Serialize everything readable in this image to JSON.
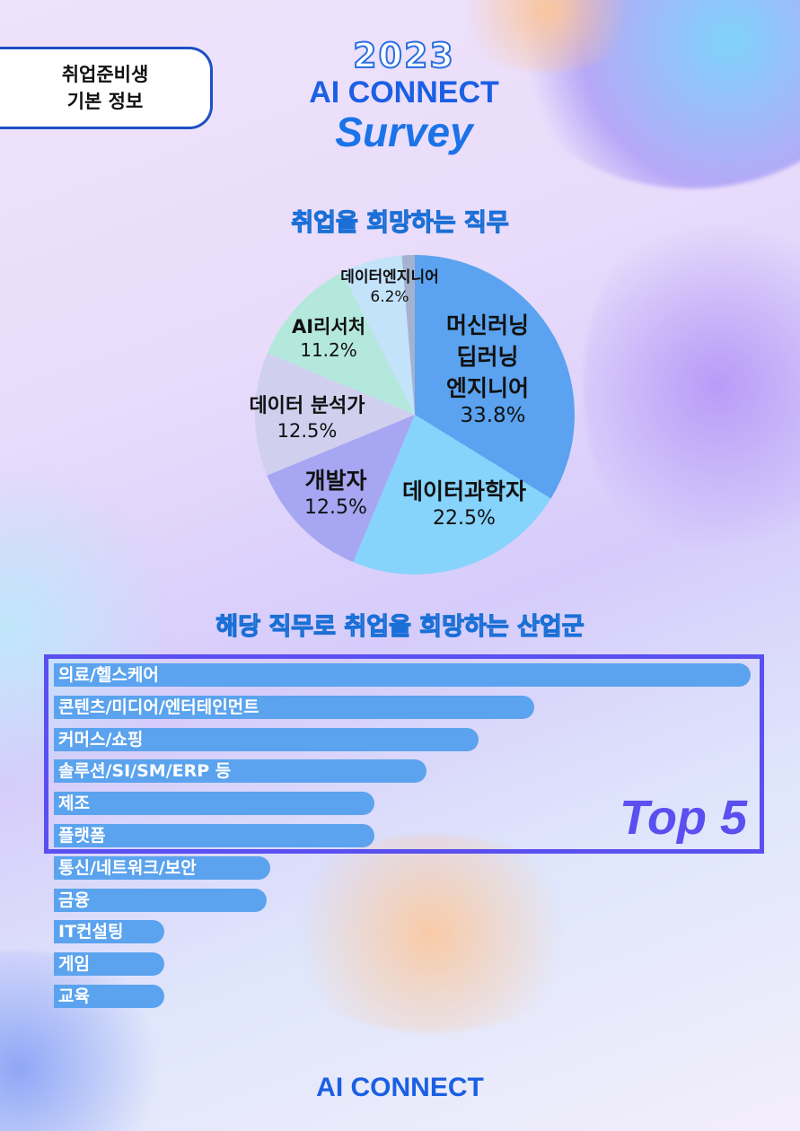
{
  "header": {
    "tag_line1": "취업준비생",
    "tag_line2": "기본 정보",
    "year": "2023",
    "brand": "AI CONNECT",
    "survey": "Survey"
  },
  "section1_title": "취업을 희망하는 직무",
  "section2_title": "해당 직무로 취업을 희망하는 산업군",
  "top5_label": "Top 5",
  "footer_brand": "AI CONNECT",
  "chart_data": [
    {
      "type": "pie",
      "title": "취업을 희망하는 직무",
      "slices": [
        {
          "label": "머신러닝\n딥러닝\n엔지니어",
          "value": 33.8,
          "display": "33.8%",
          "color": "#5ba3f0"
        },
        {
          "label": "데이터과학자",
          "value": 22.5,
          "display": "22.5%",
          "color": "#86d3fb"
        },
        {
          "label": "개발자",
          "value": 12.5,
          "display": "12.5%",
          "color": "#a6a6f2"
        },
        {
          "label": "데이터 분석가",
          "value": 12.5,
          "display": "12.5%",
          "color": "#d0cfee"
        },
        {
          "label": "AI리서처",
          "value": 11.2,
          "display": "11.2%",
          "color": "#b5e8dd"
        },
        {
          "label": "데이터엔지니어",
          "value": 6.2,
          "display": "6.2%",
          "color": "#c3e3fa"
        },
        {
          "label": "",
          "value": 1.3,
          "display": "",
          "color": "#a5b2cf"
        }
      ]
    },
    {
      "type": "bar",
      "orientation": "horizontal",
      "title": "해당 직무로 취업을 희망하는 산업군",
      "categories": [
        "의료/헬스케어",
        "콘텐츠/미디어/엔터테인먼트",
        "커머스/쇼핑",
        "솔루션/SI/SM/ERP 등",
        "제조",
        "플랫폼",
        "통신/네트워크/보안",
        "금융",
        "IT컨설팅",
        "게임",
        "교육"
      ],
      "values": [
        100,
        69,
        61,
        53.5,
        46,
        46,
        31,
        30.5,
        15.8,
        15.8,
        15.8
      ],
      "bar_color": "#5ba3ee",
      "highlight": "Top 5"
    }
  ]
}
